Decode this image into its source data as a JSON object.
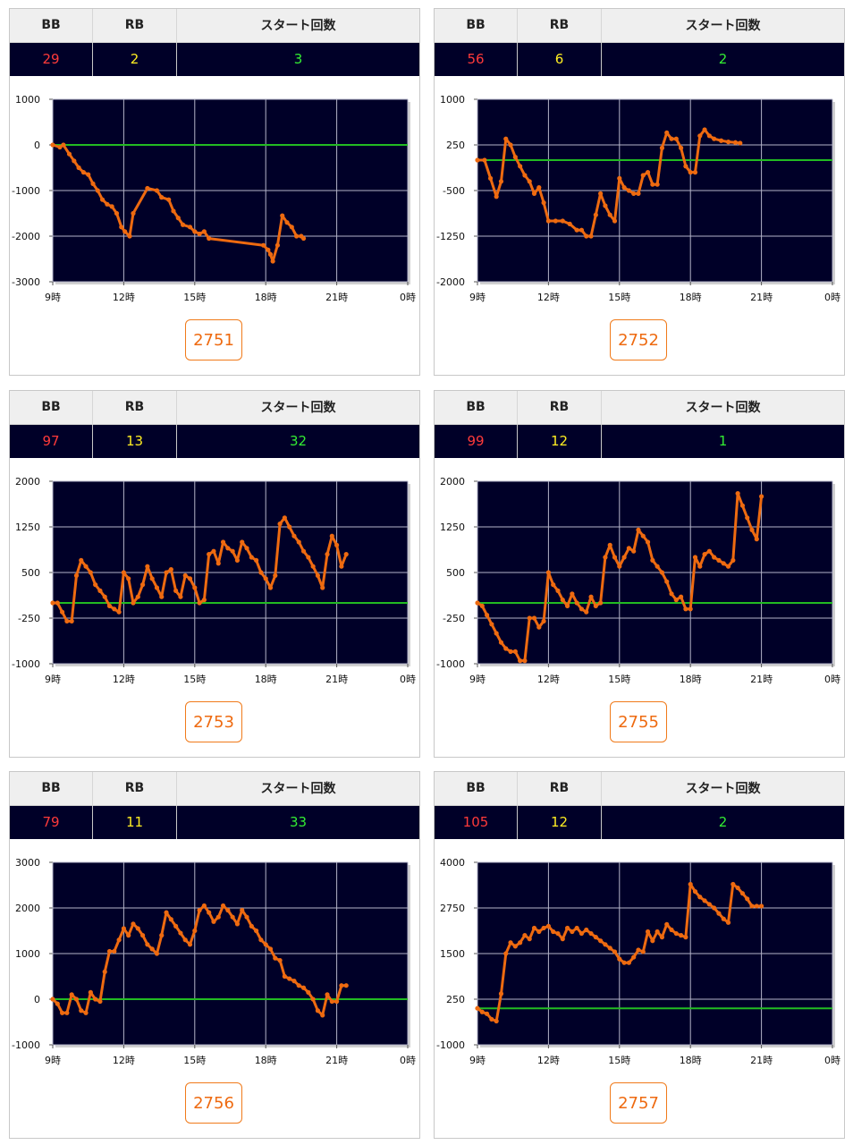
{
  "headers": {
    "bb": "BB",
    "rb": "RB",
    "start": "スタート回数"
  },
  "x_tick_labels": [
    "9時",
    "12時",
    "15時",
    "18時",
    "21時",
    "0時"
  ],
  "colors": {
    "line": "#ee6a10",
    "zero_line": "#22bb22",
    "plot_bg": "#000028",
    "grid": "#b4b4c8",
    "bb": "#ff3a3a",
    "rb": "#ffee22",
    "start": "#33ee33"
  },
  "machines": [
    {
      "number": "2751",
      "bb": "29",
      "rb": "2",
      "start": "3",
      "chart_data": {
        "type": "line",
        "title": "",
        "xlabel": "",
        "ylabel": "",
        "x_unit": "hour",
        "xlim": [
          9,
          24
        ],
        "ylim": [
          -3000,
          1000
        ],
        "yticks": [
          1000,
          0,
          -1000,
          -2000,
          -3000
        ],
        "ytick_labels": [
          "1000",
          "0",
          "-1000",
          "-2000",
          "-3000"
        ],
        "baseline": 0,
        "series": [
          {
            "x": [
              9.0,
              9.3,
              9.45,
              9.7,
              9.9,
              10.1,
              10.3,
              10.5,
              10.7,
              10.9,
              11.1,
              11.3,
              11.5,
              11.7,
              11.9,
              12.05,
              12.25,
              12.4,
              13.0,
              13.4,
              13.6,
              13.9,
              14.1,
              14.3,
              14.5,
              14.8,
              15.0,
              15.2,
              15.4,
              15.6,
              17.9,
              18.1,
              18.2,
              18.3,
              18.5,
              18.7,
              18.9,
              19.1,
              19.3,
              19.5,
              19.6
            ],
            "y": [
              0,
              -50,
              0,
              -200,
              -350,
              -500,
              -600,
              -650,
              -850,
              -1000,
              -1200,
              -1300,
              -1350,
              -1500,
              -1800,
              -1900,
              -2000,
              -1500,
              -950,
              -1000,
              -1150,
              -1200,
              -1450,
              -1600,
              -1750,
              -1800,
              -1900,
              -1950,
              -1900,
              -2050,
              -2200,
              -2300,
              -2400,
              -2550,
              -2200,
              -1550,
              -1700,
              -1800,
              -2000,
              -2000,
              -2050
            ]
          }
        ]
      }
    },
    {
      "number": "2752",
      "bb": "56",
      "rb": "6",
      "start": "2",
      "chart_data": {
        "type": "line",
        "title": "",
        "xlabel": "",
        "ylabel": "",
        "x_unit": "hour",
        "xlim": [
          9,
          24
        ],
        "ylim": [
          -2000,
          1000
        ],
        "yticks": [
          1000,
          250,
          -500,
          -1250,
          -2000
        ],
        "ytick_labels": [
          "1000",
          "250",
          "-500",
          "-1250",
          "-2000"
        ],
        "baseline": 0,
        "series": [
          {
            "x": [
              9.0,
              9.3,
              9.55,
              9.8,
              10.0,
              10.2,
              10.4,
              10.6,
              10.8,
              11.0,
              11.2,
              11.4,
              11.6,
              11.8,
              12.0,
              12.3,
              12.6,
              12.9,
              13.2,
              13.4,
              13.6,
              13.8,
              14.0,
              14.2,
              14.4,
              14.6,
              14.8,
              15.0,
              15.2,
              15.4,
              15.6,
              15.8,
              16.0,
              16.2,
              16.4,
              16.6,
              16.8,
              17.0,
              17.2,
              17.4,
              17.6,
              17.8,
              18.0,
              18.2,
              18.4,
              18.6,
              18.8,
              19.0,
              19.3,
              19.6,
              19.9,
              20.1
            ],
            "y": [
              0,
              0,
              -300,
              -600,
              -350,
              350,
              250,
              50,
              -100,
              -250,
              -350,
              -550,
              -450,
              -700,
              -1000,
              -1000,
              -1000,
              -1050,
              -1150,
              -1150,
              -1250,
              -1250,
              -900,
              -550,
              -750,
              -900,
              -1000,
              -300,
              -450,
              -500,
              -550,
              -550,
              -250,
              -200,
              -400,
              -400,
              200,
              450,
              350,
              350,
              200,
              -100,
              -200,
              -200,
              400,
              500,
              400,
              350,
              320,
              300,
              290,
              280
            ]
          }
        ]
      }
    },
    {
      "number": "2753",
      "bb": "97",
      "rb": "13",
      "start": "32",
      "chart_data": {
        "type": "line",
        "title": "",
        "xlabel": "",
        "ylabel": "",
        "x_unit": "hour",
        "xlim": [
          9,
          24
        ],
        "ylim": [
          -1000,
          2000
        ],
        "yticks": [
          2000,
          1250,
          500,
          -250,
          -1000
        ],
        "ytick_labels": [
          "2000",
          "1250",
          "500",
          "-250",
          "-1000"
        ],
        "baseline": 0,
        "series": [
          {
            "x": [
              9.0,
              9.2,
              9.4,
              9.6,
              9.8,
              10.0,
              10.2,
              10.4,
              10.6,
              10.8,
              11.0,
              11.2,
              11.4,
              11.6,
              11.8,
              12.0,
              12.2,
              12.4,
              12.6,
              12.8,
              13.0,
              13.2,
              13.4,
              13.6,
              13.8,
              14.0,
              14.2,
              14.4,
              14.6,
              14.8,
              15.0,
              15.2,
              15.4,
              15.6,
              15.8,
              16.0,
              16.2,
              16.4,
              16.6,
              16.8,
              17.0,
              17.2,
              17.4,
              17.6,
              17.8,
              18.0,
              18.2,
              18.4,
              18.6,
              18.8,
              19.0,
              19.2,
              19.4,
              19.6,
              19.8,
              20.0,
              20.2,
              20.4,
              20.6,
              20.8,
              21.0,
              21.2,
              21.4
            ],
            "y": [
              0,
              0,
              -150,
              -300,
              -300,
              450,
              700,
              600,
              500,
              300,
              200,
              100,
              -50,
              -100,
              -150,
              500,
              400,
              0,
              100,
              300,
              600,
              400,
              250,
              100,
              500,
              550,
              200,
              100,
              450,
              400,
              250,
              0,
              50,
              800,
              850,
              650,
              1000,
              900,
              850,
              700,
              1000,
              900,
              750,
              700,
              500,
              400,
              250,
              450,
              1300,
              1400,
              1250,
              1100,
              1000,
              850,
              750,
              600,
              450,
              250,
              800,
              1100,
              950,
              600,
              800
            ]
          }
        ]
      }
    },
    {
      "number": "2755",
      "bb": "99",
      "rb": "12",
      "start": "1",
      "chart_data": {
        "type": "line",
        "title": "",
        "xlabel": "",
        "ylabel": "",
        "x_unit": "hour",
        "xlim": [
          9,
          24
        ],
        "ylim": [
          -1000,
          2000
        ],
        "yticks": [
          2000,
          1250,
          500,
          -250,
          -1000
        ],
        "ytick_labels": [
          "2000",
          "1250",
          "500",
          "-250",
          "-1000"
        ],
        "baseline": 0,
        "series": [
          {
            "x": [
              9.0,
              9.2,
              9.4,
              9.6,
              9.8,
              10.0,
              10.2,
              10.4,
              10.6,
              10.8,
              11.0,
              11.2,
              11.4,
              11.6,
              11.8,
              12.0,
              12.2,
              12.4,
              12.6,
              12.8,
              13.0,
              13.2,
              13.4,
              13.6,
              13.8,
              14.0,
              14.2,
              14.4,
              14.6,
              14.8,
              15.0,
              15.2,
              15.4,
              15.6,
              15.8,
              16.0,
              16.2,
              16.4,
              16.6,
              16.8,
              17.0,
              17.2,
              17.4,
              17.6,
              17.8,
              18.0,
              18.2,
              18.4,
              18.6,
              18.8,
              19.0,
              19.2,
              19.4,
              19.6,
              19.8,
              20.0,
              20.2,
              20.4,
              20.6,
              20.8,
              21.0
            ],
            "y": [
              0,
              -50,
              -200,
              -350,
              -500,
              -650,
              -750,
              -800,
              -800,
              -950,
              -950,
              -250,
              -250,
              -400,
              -300,
              500,
              300,
              200,
              50,
              -50,
              150,
              0,
              -100,
              -150,
              100,
              -50,
              0,
              750,
              950,
              750,
              600,
              750,
              900,
              850,
              1200,
              1100,
              1000,
              700,
              600,
              500,
              350,
              150,
              50,
              100,
              -100,
              -100,
              750,
              600,
              800,
              850,
              750,
              700,
              650,
              600,
              700,
              1800,
              1600,
              1400,
              1200,
              1050,
              1750
            ]
          }
        ]
      }
    },
    {
      "number": "2756",
      "bb": "79",
      "rb": "11",
      "start": "33",
      "chart_data": {
        "type": "line",
        "title": "",
        "xlabel": "",
        "ylabel": "",
        "x_unit": "hour",
        "xlim": [
          9,
          24
        ],
        "ylim": [
          -1000,
          3000
        ],
        "yticks": [
          3000,
          2000,
          1000,
          0,
          -1000
        ],
        "ytick_labels": [
          "3000",
          "2000",
          "1000",
          "0",
          "-1000"
        ],
        "baseline": 0,
        "series": [
          {
            "x": [
              9.0,
              9.2,
              9.4,
              9.6,
              9.8,
              10.0,
              10.2,
              10.4,
              10.6,
              10.8,
              11.0,
              11.2,
              11.4,
              11.6,
              11.8,
              12.0,
              12.2,
              12.4,
              12.6,
              12.8,
              13.0,
              13.2,
              13.4,
              13.6,
              13.8,
              14.0,
              14.2,
              14.4,
              14.6,
              14.8,
              15.0,
              15.2,
              15.4,
              15.6,
              15.8,
              16.0,
              16.2,
              16.4,
              16.6,
              16.8,
              17.0,
              17.2,
              17.4,
              17.6,
              17.8,
              18.0,
              18.2,
              18.4,
              18.6,
              18.8,
              19.0,
              19.2,
              19.4,
              19.6,
              19.8,
              20.0,
              20.2,
              20.4,
              20.6,
              20.8,
              21.0,
              21.2,
              21.4
            ],
            "y": [
              0,
              -100,
              -300,
              -300,
              100,
              0,
              -250,
              -300,
              150,
              0,
              -50,
              600,
              1050,
              1050,
              1300,
              1550,
              1400,
              1650,
              1550,
              1400,
              1200,
              1100,
              1000,
              1400,
              1900,
              1750,
              1600,
              1450,
              1300,
              1200,
              1500,
              1950,
              2050,
              1900,
              1700,
              1800,
              2050,
              1950,
              1800,
              1650,
              1950,
              1800,
              1600,
              1500,
              1300,
              1200,
              1100,
              900,
              850,
              500,
              450,
              400,
              300,
              250,
              150,
              0,
              -250,
              -350,
              100,
              -50,
              -50,
              300,
              300
            ]
          }
        ]
      }
    },
    {
      "number": "2757",
      "bb": "105",
      "rb": "12",
      "start": "2",
      "chart_data": {
        "type": "line",
        "title": "",
        "xlabel": "",
        "ylabel": "",
        "x_unit": "hour",
        "xlim": [
          9,
          24
        ],
        "ylim": [
          -1000,
          4000
        ],
        "yticks": [
          4000,
          2750,
          1500,
          250,
          -1000
        ],
        "ytick_labels": [
          "4000",
          "2750",
          "1500",
          "250",
          "-1000"
        ],
        "baseline": 0,
        "series": [
          {
            "x": [
              9.0,
              9.2,
              9.4,
              9.6,
              9.8,
              10.0,
              10.2,
              10.4,
              10.6,
              10.8,
              11.0,
              11.2,
              11.4,
              11.6,
              11.8,
              12.0,
              12.2,
              12.4,
              12.6,
              12.8,
              13.0,
              13.2,
              13.4,
              13.6,
              13.8,
              14.0,
              14.2,
              14.4,
              14.6,
              14.8,
              15.0,
              15.2,
              15.4,
              15.6,
              15.8,
              16.0,
              16.2,
              16.4,
              16.6,
              16.8,
              17.0,
              17.2,
              17.4,
              17.6,
              17.8,
              18.0,
              18.2,
              18.4,
              18.6,
              18.8,
              19.0,
              19.2,
              19.4,
              19.6,
              19.8,
              20.0,
              20.2,
              20.4,
              20.6,
              20.8,
              21.0
            ],
            "y": [
              0,
              -100,
              -150,
              -300,
              -350,
              400,
              1500,
              1800,
              1700,
              1800,
              2000,
              1900,
              2200,
              2100,
              2200,
              2250,
              2100,
              2050,
              1900,
              2200,
              2100,
              2200,
              2050,
              2150,
              2050,
              1950,
              1850,
              1750,
              1650,
              1550,
              1350,
              1250,
              1250,
              1400,
              1600,
              1550,
              2100,
              1850,
              2100,
              1950,
              2300,
              2150,
              2050,
              2000,
              1950,
              3400,
              3200,
              3050,
              2950,
              2850,
              2750,
              2600,
              2450,
              2350,
              3400,
              3300,
              3150,
              3000,
              2800,
              2800,
              2800
            ]
          }
        ]
      }
    }
  ]
}
